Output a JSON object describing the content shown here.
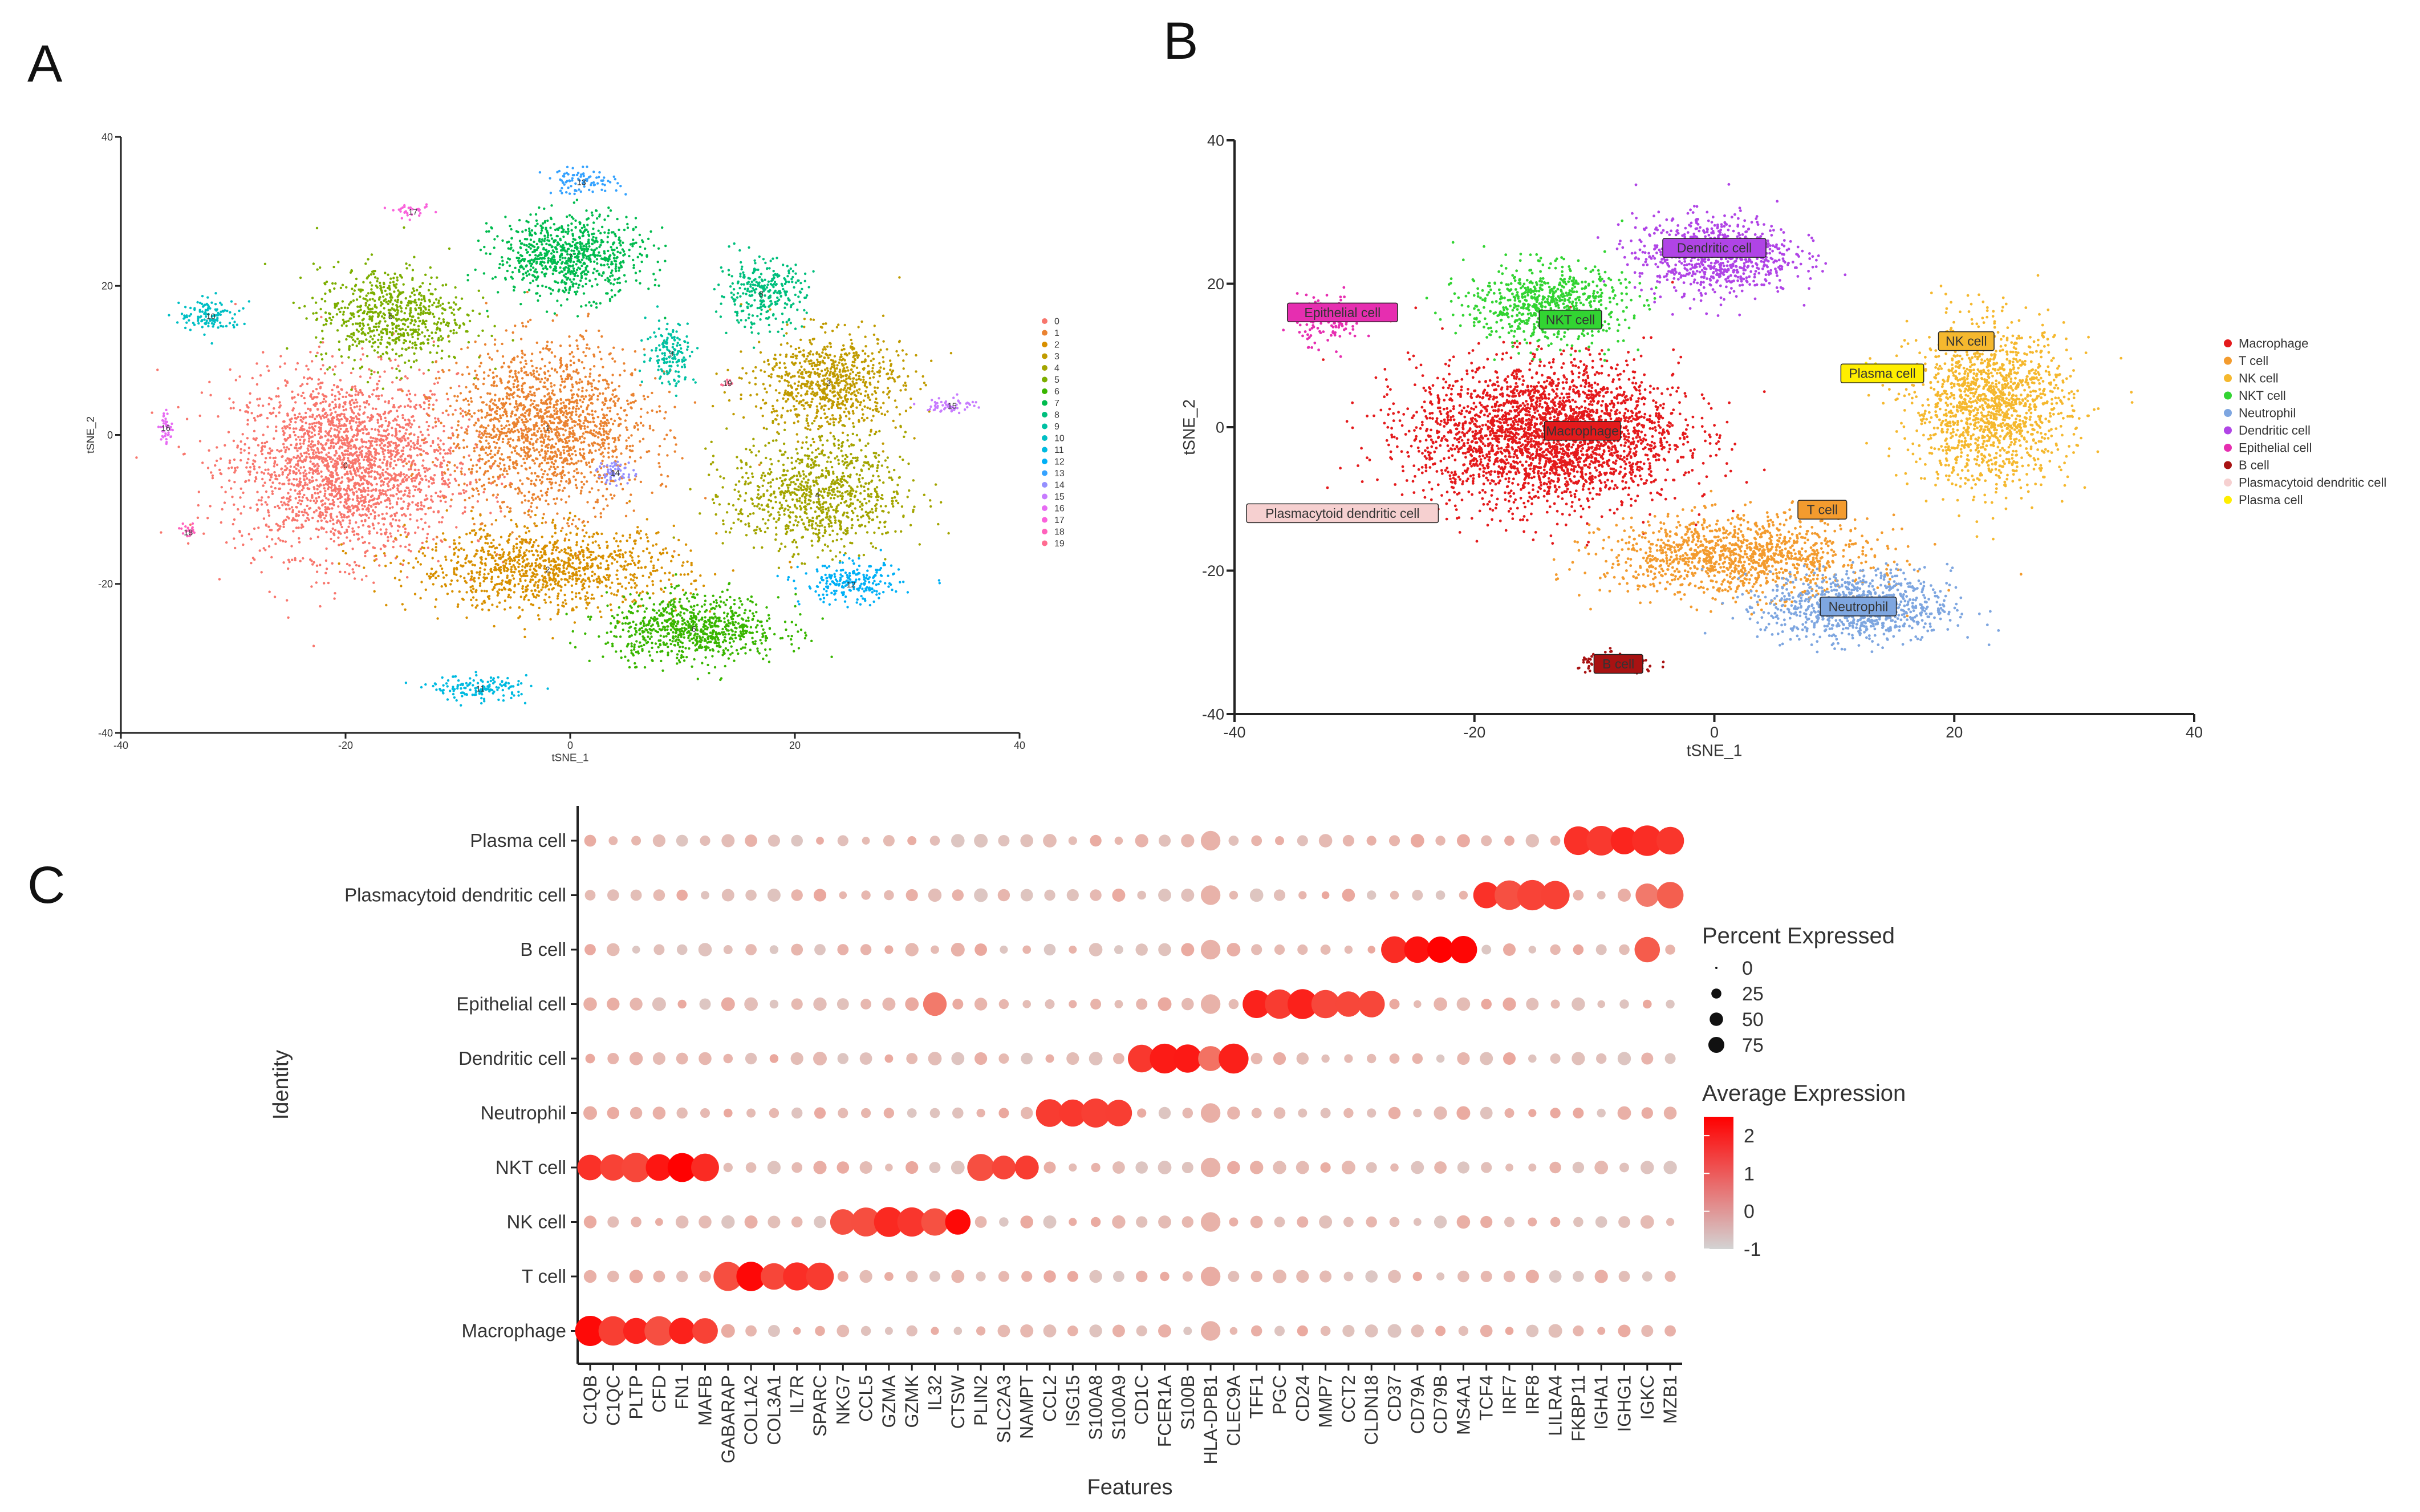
{
  "panel_labels": {
    "a": "A",
    "b": "B",
    "c": "C"
  },
  "chart_data": [
    {
      "id": "A",
      "type": "scatter",
      "title": "",
      "xlabel": "tSNE_1",
      "ylabel": "tSNE_2",
      "xlim": [
        -40,
        40
      ],
      "ylim": [
        -40,
        40
      ],
      "xticks": [
        -40,
        -20,
        0,
        20,
        40
      ],
      "yticks": [
        -40,
        -20,
        0,
        20,
        40
      ],
      "legend": [
        "0",
        "1",
        "2",
        "3",
        "4",
        "5",
        "6",
        "7",
        "8",
        "9",
        "10",
        "11",
        "12",
        "13",
        "14",
        "15",
        "16",
        "17",
        "18",
        "19"
      ],
      "colors": [
        "#F8766D",
        "#EA8331",
        "#D89000",
        "#C09B00",
        "#A3A500",
        "#7CAE00",
        "#39B600",
        "#00BB4E",
        "#00BF7D",
        "#00C1A3",
        "#00BFC4",
        "#00BAE0",
        "#00B0F6",
        "#35A2FF",
        "#9590FF",
        "#C77CFF",
        "#E76BF3",
        "#FA62DB",
        "#FF62BC",
        "#FF6C91"
      ],
      "clusters": [
        {
          "label": "0",
          "x": -20,
          "y": -4,
          "sx": 9,
          "sy": 11,
          "n": 2400
        },
        {
          "label": "1",
          "x": -2,
          "y": 1,
          "sx": 8,
          "sy": 10,
          "n": 1700
        },
        {
          "label": "2",
          "x": -2,
          "y": -18,
          "sx": 11,
          "sy": 5,
          "n": 1100
        },
        {
          "label": "3",
          "x": 23,
          "y": 7,
          "sx": 6,
          "sy": 6,
          "n": 800
        },
        {
          "label": "4",
          "x": 22,
          "y": -8,
          "sx": 7,
          "sy": 7,
          "n": 900
        },
        {
          "label": "5",
          "x": -16,
          "y": 16,
          "sx": 6,
          "sy": 6,
          "n": 700
        },
        {
          "label": "6",
          "x": 11,
          "y": -26,
          "sx": 7,
          "sy": 4,
          "n": 800
        },
        {
          "label": "7",
          "x": 0,
          "y": 24,
          "sx": 6,
          "sy": 5,
          "n": 800
        },
        {
          "label": "8",
          "x": 17,
          "y": 19,
          "sx": 3.5,
          "sy": 4,
          "n": 300
        },
        {
          "label": "9",
          "x": 9,
          "y": 11,
          "sx": 2,
          "sy": 4,
          "n": 150
        },
        {
          "label": "10",
          "x": -32,
          "y": 16,
          "sx": 2.5,
          "sy": 2,
          "n": 120
        },
        {
          "label": "11",
          "x": -8,
          "y": -34,
          "sx": 4,
          "sy": 1.5,
          "n": 150
        },
        {
          "label": "12",
          "x": 25,
          "y": -20,
          "sx": 4,
          "sy": 2.5,
          "n": 220
        },
        {
          "label": "13",
          "x": 1,
          "y": 34,
          "sx": 3,
          "sy": 1.5,
          "n": 90
        },
        {
          "label": "14",
          "x": 4,
          "y": -5,
          "sx": 1.5,
          "sy": 1.5,
          "n": 60
        },
        {
          "label": "15",
          "x": 34,
          "y": 4,
          "sx": 2,
          "sy": 1,
          "n": 60
        },
        {
          "label": "16",
          "x": -36,
          "y": 1,
          "sx": 0.6,
          "sy": 2,
          "n": 40
        },
        {
          "label": "17",
          "x": -14,
          "y": 30,
          "sx": 1.5,
          "sy": 0.7,
          "n": 30
        },
        {
          "label": "18",
          "x": -34,
          "y": -13,
          "sx": 0.8,
          "sy": 0.8,
          "n": 20
        },
        {
          "label": "19",
          "x": 14,
          "y": 7,
          "sx": 0.5,
          "sy": 0.5,
          "n": 10
        }
      ]
    },
    {
      "id": "B",
      "type": "scatter",
      "title": "",
      "xlabel": "tSNE_1",
      "ylabel": "tSNE_2",
      "xlim": [
        -40,
        40
      ],
      "ylim": [
        -40,
        40
      ],
      "xticks": [
        -40,
        -20,
        0,
        20,
        40
      ],
      "yticks": [
        -40,
        -20,
        0,
        20,
        40
      ],
      "legend": [
        "Macrophage",
        "T cell",
        "NK cell",
        "NKT cell",
        "Neutrophil",
        "Dendritic cell",
        "Epithelial cell",
        "B cell",
        "Plasmacytoid dendritic cell",
        "Plasma cell"
      ],
      "colors": [
        "#E41A1C",
        "#F39B2E",
        "#F5B82E",
        "#32D432",
        "#7EA6E0",
        "#B044E6",
        "#E62EB0",
        "#A81212",
        "#F6D0D0",
        "#FFEE00"
      ],
      "clusters": [
        {
          "label": "Macrophage",
          "x": -14,
          "y": -1,
          "sx": 10,
          "sy": 9,
          "n": 2800
        },
        {
          "label": "T cell",
          "x": 2,
          "y": -18,
          "sx": 10,
          "sy": 5,
          "n": 1200
        },
        {
          "label": "NK cell",
          "x": 23,
          "y": 3,
          "sx": 6,
          "sy": 10,
          "n": 1500
        },
        {
          "label": "NKT cell",
          "x": -14,
          "y": 17,
          "sx": 6,
          "sy": 5,
          "n": 700
        },
        {
          "label": "Neutrophil",
          "x": 12,
          "y": -25,
          "sx": 7,
          "sy": 4.5,
          "n": 900
        },
        {
          "label": "Dendritic cell",
          "x": 0,
          "y": 24,
          "sx": 6,
          "sy": 5,
          "n": 800
        },
        {
          "label": "Epithelial cell",
          "x": -32,
          "y": 15,
          "sx": 2.5,
          "sy": 3,
          "n": 150
        },
        {
          "label": "B cell",
          "x": -8,
          "y": -33,
          "sx": 3,
          "sy": 1.2,
          "n": 150
        },
        {
          "label": "Plasmacytoid dendritic cell",
          "x": -30,
          "y": -12,
          "sx": 0.5,
          "sy": 0.5,
          "n": 6
        },
        {
          "label": "Plasma cell",
          "x": 13,
          "y": 8,
          "sx": 0.6,
          "sy": 0.8,
          "n": 25
        }
      ],
      "annotations": [
        {
          "text": "Dendritic cell",
          "x": 0,
          "y": 25,
          "color": "#B044E6"
        },
        {
          "text": "Epithelial cell",
          "x": -31,
          "y": 16,
          "color": "#E62EB0"
        },
        {
          "text": "NKT cell",
          "x": -12,
          "y": 15,
          "color": "#32D432"
        },
        {
          "text": "NK cell",
          "x": 21,
          "y": 12,
          "color": "#F5B82E"
        },
        {
          "text": "Plasma cell",
          "x": 14,
          "y": 7.5,
          "color": "#FFEE00"
        },
        {
          "text": "Macrophage",
          "x": -11,
          "y": -0.5,
          "color": "#E41A1C"
        },
        {
          "text": "Plasmacytoid dendritic cell",
          "x": -31,
          "y": -12,
          "color": "#F6D0D0"
        },
        {
          "text": "T cell",
          "x": 9,
          "y": -11.5,
          "color": "#F39B2E"
        },
        {
          "text": "Neutrophil",
          "x": 12,
          "y": -25,
          "color": "#7EA6E0"
        },
        {
          "text": "B cell",
          "x": -8,
          "y": -33,
          "color": "#A81212"
        }
      ]
    },
    {
      "id": "C",
      "type": "dot",
      "title": "",
      "xlabel": "Features",
      "ylabel": "Identity",
      "features": [
        "C1QB",
        "C1QC",
        "PLTP",
        "CFD",
        "FN1",
        "MAFB",
        "GABARAP",
        "COL1A2",
        "COL3A1",
        "IL7R",
        "SPARC",
        "NKG7",
        "CCL5",
        "GZMA",
        "GZMK",
        "IL32",
        "CTSW",
        "PLIN2",
        "SLC2A3",
        "NAMPT",
        "CCL2",
        "ISG15",
        "S100A8",
        "S100A9",
        "CD1C",
        "FCER1A",
        "S100B",
        "HLA-DPB1",
        "CLEC9A",
        "TFF1",
        "PGC",
        "CD24",
        "MMP7",
        "CCT2",
        "CLDN18",
        "CD37",
        "CD79A",
        "CD79B",
        "MS4A1",
        "TCF4",
        "IRF7",
        "IRF8",
        "LILRA4",
        "FKBP11",
        "IGHA1",
        "IGHG1",
        "IGKC",
        "MZB1"
      ],
      "identities": [
        "Plasma cell",
        "Plasmacytoid dendritic cell",
        "B cell",
        "Epithelial cell",
        "Dendritic cell",
        "Neutrophil",
        "NKT cell",
        "NK cell",
        "T cell",
        "Macrophage"
      ],
      "size_legend": {
        "title": "Percent Expressed",
        "values": [
          0,
          25,
          50,
          75
        ]
      },
      "color_legend": {
        "title": "Average Expression",
        "range": [
          -1,
          2.5
        ],
        "ticks": [
          2,
          1,
          0,
          -1
        ],
        "low": "#D3D3D3",
        "high": "#FF0000"
      },
      "marker_groups": {
        "Macrophage": [
          0,
          6
        ],
        "T cell": [
          6,
          11
        ],
        "NK cell": [
          11,
          17
        ],
        "NKT cell": [
          0,
          6
        ],
        "Neutrophil": [
          20,
          24
        ],
        "Dendritic cell": [
          24,
          29
        ],
        "Epithelial cell": [
          29,
          35
        ],
        "B cell": [
          35,
          39
        ],
        "Plasmacytoid dendritic cell": [
          39,
          43
        ],
        "Plasma cell": [
          43,
          48
        ]
      },
      "extra_high": [
        {
          "identity": "NKT cell",
          "features": [
            17,
            18,
            19
          ]
        },
        {
          "identity": "Dendritic cell",
          "features": [
            27
          ]
        },
        {
          "identity": "Epithelial cell",
          "features": [
            15
          ]
        },
        {
          "identity": "B cell",
          "features": [
            46
          ]
        },
        {
          "identity": "Plasmacytoid dendritic cell",
          "features": [
            46,
            47
          ]
        }
      ]
    }
  ]
}
